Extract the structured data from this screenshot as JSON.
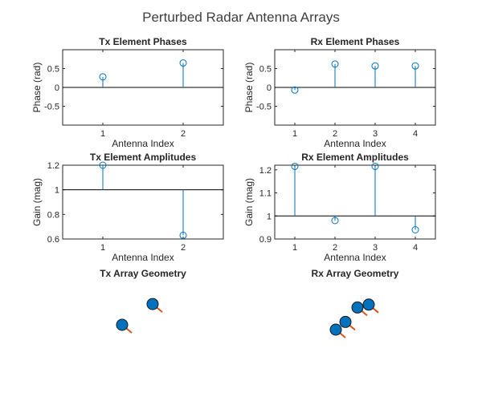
{
  "figure": {
    "title": "Perturbed Radar Antenna Arrays"
  },
  "colors": {
    "stem": "#0072BD",
    "element_fill": "#0072BD",
    "element_stroke": "#1a1a1a",
    "normal": "#D95319",
    "baseline": "#000000"
  },
  "chart_data": [
    {
      "id": "tx-phases",
      "type": "stem",
      "title": "Tx Element Phases",
      "xlabel": "Antenna Index",
      "ylabel": "Phase (rad)",
      "x": [
        1,
        2
      ],
      "values": [
        0.28,
        0.65
      ],
      "baseline": 0,
      "xlim": [
        0.5,
        2.5
      ],
      "ylim": [
        -1,
        1
      ],
      "xticks": [
        1,
        2
      ],
      "xtick_labels": [
        "1",
        "2"
      ],
      "yticks": [
        0.5,
        0,
        -0.5
      ],
      "ytick_labels": [
        "0.5",
        "0",
        "-0.5"
      ]
    },
    {
      "id": "rx-phases",
      "type": "stem",
      "title": "Rx Element Phases",
      "xlabel": "Antenna Index",
      "ylabel": "Phase (rad)",
      "x": [
        1,
        2,
        3,
        4
      ],
      "values": [
        -0.07,
        0.62,
        0.57,
        0.57
      ],
      "baseline": 0,
      "xlim": [
        0.5,
        4.5
      ],
      "ylim": [
        -1,
        1
      ],
      "xticks": [
        1,
        2,
        3,
        4
      ],
      "xtick_labels": [
        "1",
        "2",
        "3",
        "4"
      ],
      "yticks": [
        0.5,
        0,
        -0.5
      ],
      "ytick_labels": [
        "0.5",
        "0",
        "-0.5"
      ]
    },
    {
      "id": "tx-amplitudes",
      "type": "stem",
      "title": "Tx Element Amplitudes",
      "xlabel": "Antenna Index",
      "ylabel": "Gain (mag)",
      "x": [
        1,
        2
      ],
      "values": [
        1.2,
        0.63
      ],
      "baseline": 1,
      "xlim": [
        0.5,
        2.5
      ],
      "ylim": [
        0.6,
        1.2
      ],
      "xticks": [
        1,
        2
      ],
      "xtick_labels": [
        "1",
        "2"
      ],
      "yticks": [
        1.2,
        1,
        0.8,
        0.6
      ],
      "ytick_labels": [
        "1.2",
        "1",
        "0.8",
        "0.6"
      ]
    },
    {
      "id": "rx-amplitudes",
      "type": "stem",
      "title": "Rx Element Amplitudes",
      "xlabel": "Antenna Index",
      "ylabel": "Gain (mag)",
      "x": [
        1,
        2,
        3,
        4
      ],
      "values": [
        1.215,
        0.98,
        1.215,
        0.94
      ],
      "baseline": 1,
      "xlim": [
        0.5,
        4.5
      ],
      "ylim": [
        0.9,
        1.22
      ],
      "xticks": [
        1,
        2,
        3,
        4
      ],
      "xtick_labels": [
        "1",
        "2",
        "3",
        "4"
      ],
      "yticks": [
        1.2,
        1.1,
        1,
        0.9
      ],
      "ytick_labels": [
        "1.2",
        "1.1",
        "1",
        "0.9"
      ]
    },
    {
      "id": "tx-geometry",
      "type": "scatter",
      "title": "Tx Array Geometry",
      "points": [
        {
          "x": 0,
          "y": 0
        },
        {
          "x": 1,
          "y": 0.7
        }
      ]
    },
    {
      "id": "rx-geometry",
      "type": "scatter",
      "title": "Rx Array Geometry",
      "points": [
        {
          "x": 0,
          "y": 0
        },
        {
          "x": 0.6,
          "y": 0.4
        },
        {
          "x": 1.35,
          "y": 1.15
        },
        {
          "x": 2.05,
          "y": 1.3
        }
      ]
    }
  ]
}
